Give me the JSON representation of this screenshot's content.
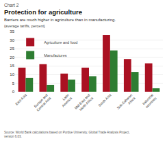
{
  "chart_data": {
    "type": "bar",
    "title": "Protection for agriculture",
    "subtitle": "Barriers are much higher in agriculture than in manufacturing.",
    "ylabel": "(average tariffs, percent)",
    "annotations": [
      "Chart 2",
      "Source: World Bank calculations based on Purdue University, Global Trade Analysis Project,\nversion 6.03."
    ],
    "categories": [
      "East Asia",
      "Europe and\nCentral Asia",
      "Latin\nAmerica",
      "Mid-East and\nNorth Africa",
      "South Asia",
      "Sub-Saharan\nAfrica",
      "Industrial\ncountries"
    ],
    "series": [
      {
        "name": "Agriculture and food",
        "color": "#aa1122",
        "values": [
          14,
          16,
          10.5,
          14,
          33,
          19,
          16.5
        ]
      },
      {
        "name": "Manufactures",
        "color": "#2e7d32",
        "values": [
          8,
          4,
          7,
          9,
          24,
          11.5,
          2
        ]
      }
    ],
    "ylim": [
      0,
      35
    ],
    "yticks": [
      0,
      5,
      10,
      15,
      20,
      25,
      30,
      35
    ],
    "grid": true,
    "legend": "upper left"
  }
}
